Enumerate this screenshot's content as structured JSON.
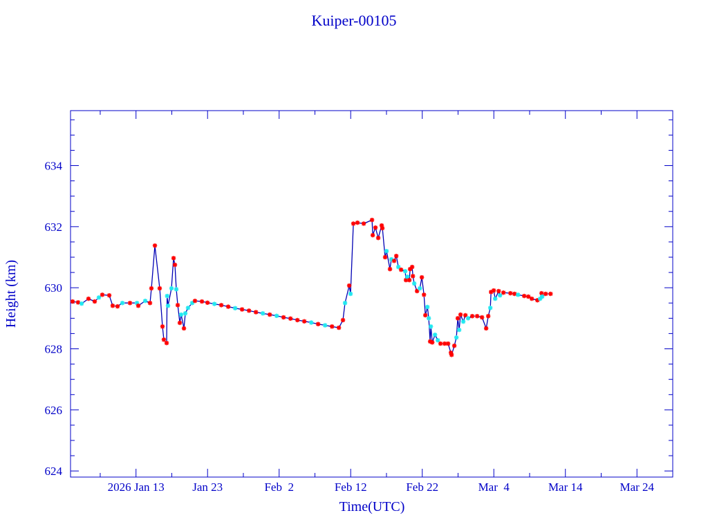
{
  "chart_data": {
    "type": "scatter",
    "title": "Kuiper-00105",
    "xlabel": "Time(UTC)",
    "ylabel": "Height (km)",
    "x_units": "day of year 2026 (Jan 1 = 1)",
    "xlim": [
      3.85,
      88.0
    ],
    "ylim": [
      623.8,
      635.8
    ],
    "x_major_step_days": 10,
    "x_minor_step_days": 5,
    "y_major_step": 2,
    "y_minor_step": 0.5,
    "grid": false,
    "x_ticks": [
      {
        "value": 13,
        "label": "2026 Jan 13"
      },
      {
        "value": 23,
        "label": "Jan 23"
      },
      {
        "value": 33,
        "label": "Feb  2"
      },
      {
        "value": 43,
        "label": "Feb 12"
      },
      {
        "value": 53,
        "label": "Feb 22"
      },
      {
        "value": 63,
        "label": "Mar  4"
      },
      {
        "value": 73,
        "label": "Mar 14"
      },
      {
        "value": 83,
        "label": "Mar 24"
      }
    ],
    "y_ticks": [
      {
        "value": 624,
        "label": "624"
      },
      {
        "value": 626,
        "label": "626"
      },
      {
        "value": 628,
        "label": "628"
      },
      {
        "value": 630,
        "label": "630"
      },
      {
        "value": 632,
        "label": "632"
      },
      {
        "value": 634,
        "label": "634"
      }
    ],
    "colors": {
      "axis": "#0000c8",
      "line": "#0000b4",
      "red_marker": "#ff0000",
      "cyan_marker": "#20e8f0"
    },
    "series_note": "points: [day, height_km, marker] where marker r=red, c=cyan; all points connected by a line",
    "points": [
      [
        4.14,
        629.55,
        "r"
      ],
      [
        4.91,
        629.52,
        "r"
      ],
      [
        5.4,
        629.48,
        "c"
      ],
      [
        6.36,
        629.64,
        "r"
      ],
      [
        7.23,
        629.55,
        "r"
      ],
      [
        7.81,
        629.68,
        "c"
      ],
      [
        8.29,
        629.77,
        "r"
      ],
      [
        9.26,
        629.75,
        "r"
      ],
      [
        9.74,
        629.41,
        "r"
      ],
      [
        10.42,
        629.39,
        "r"
      ],
      [
        11.1,
        629.5,
        "c"
      ],
      [
        12.16,
        629.5,
        "r"
      ],
      [
        13.13,
        629.5,
        "c"
      ],
      [
        13.32,
        629.41,
        "r"
      ],
      [
        14.29,
        629.57,
        "c"
      ],
      [
        14.96,
        629.5,
        "r"
      ],
      [
        15.15,
        629.98,
        "r"
      ],
      [
        15.64,
        631.38,
        "r"
      ],
      [
        16.31,
        629.98,
        "r"
      ],
      [
        16.7,
        628.73,
        "r"
      ],
      [
        16.89,
        628.3,
        "r"
      ],
      [
        17.28,
        628.19,
        "r"
      ],
      [
        17.35,
        629.73,
        "c"
      ],
      [
        17.47,
        629.41,
        "c"
      ],
      [
        17.96,
        629.98,
        "c"
      ],
      [
        18.25,
        630.97,
        "r"
      ],
      [
        18.44,
        630.75,
        "r"
      ],
      [
        18.63,
        629.95,
        "c"
      ],
      [
        18.83,
        629.43,
        "r"
      ],
      [
        19.12,
        628.85,
        "r"
      ],
      [
        19.31,
        629.12,
        "c"
      ],
      [
        19.7,
        628.67,
        "r"
      ],
      [
        19.89,
        629.16,
        "c"
      ],
      [
        20.27,
        629.34,
        "c"
      ],
      [
        20.85,
        629.5,
        "c"
      ],
      [
        21.24,
        629.57,
        "r"
      ],
      [
        22.21,
        629.55,
        "r"
      ],
      [
        22.99,
        629.51,
        "r"
      ],
      [
        23.96,
        629.47,
        "c"
      ],
      [
        24.92,
        629.43,
        "r"
      ],
      [
        25.89,
        629.38,
        "r"
      ],
      [
        26.86,
        629.33,
        "c"
      ],
      [
        27.82,
        629.29,
        "r"
      ],
      [
        28.79,
        629.25,
        "r"
      ],
      [
        29.76,
        629.2,
        "r"
      ],
      [
        30.72,
        629.16,
        "c"
      ],
      [
        31.69,
        629.12,
        "r"
      ],
      [
        32.66,
        629.08,
        "c"
      ],
      [
        33.62,
        629.03,
        "r"
      ],
      [
        34.59,
        628.99,
        "r"
      ],
      [
        35.56,
        628.94,
        "r"
      ],
      [
        36.52,
        628.9,
        "r"
      ],
      [
        37.49,
        628.86,
        "c"
      ],
      [
        38.45,
        628.81,
        "r"
      ],
      [
        39.42,
        628.77,
        "c"
      ],
      [
        40.39,
        628.73,
        "r"
      ],
      [
        41.35,
        628.69,
        "r"
      ],
      [
        41.92,
        628.94,
        "r"
      ],
      [
        42.21,
        629.5,
        "c"
      ],
      [
        42.79,
        630.07,
        "r"
      ],
      [
        42.98,
        629.8,
        "c"
      ],
      [
        43.37,
        632.1,
        "r"
      ],
      [
        43.95,
        632.13,
        "r"
      ],
      [
        44.82,
        632.1,
        "r"
      ],
      [
        45.98,
        632.22,
        "r"
      ],
      [
        46.08,
        631.72,
        "r"
      ],
      [
        46.46,
        631.97,
        "r"
      ],
      [
        46.85,
        631.63,
        "r"
      ],
      [
        47.33,
        632.04,
        "r"
      ],
      [
        47.43,
        631.95,
        "r"
      ],
      [
        47.81,
        631.0,
        "r"
      ],
      [
        48.01,
        631.2,
        "c"
      ],
      [
        48.49,
        630.61,
        "r"
      ],
      [
        48.68,
        630.93,
        "c"
      ],
      [
        49.07,
        630.88,
        "r"
      ],
      [
        49.37,
        631.04,
        "r"
      ],
      [
        49.66,
        630.68,
        "c"
      ],
      [
        50.04,
        630.59,
        "r"
      ],
      [
        50.62,
        630.54,
        "c"
      ],
      [
        50.72,
        630.25,
        "r"
      ],
      [
        50.92,
        630.36,
        "c"
      ],
      [
        51.2,
        630.25,
        "r"
      ],
      [
        51.3,
        630.61,
        "r"
      ],
      [
        51.59,
        630.68,
        "r"
      ],
      [
        51.69,
        630.38,
        "r"
      ],
      [
        51.88,
        630.14,
        "c"
      ],
      [
        52.27,
        629.89,
        "r"
      ],
      [
        52.66,
        629.98,
        "c"
      ],
      [
        52.94,
        630.34,
        "r"
      ],
      [
        53.24,
        629.77,
        "r"
      ],
      [
        53.43,
        629.1,
        "r"
      ],
      [
        53.72,
        629.37,
        "c"
      ],
      [
        53.91,
        629.0,
        "c"
      ],
      [
        54.1,
        628.24,
        "r"
      ],
      [
        54.2,
        628.73,
        "c"
      ],
      [
        54.4,
        628.21,
        "r"
      ],
      [
        54.78,
        628.46,
        "c"
      ],
      [
        55.17,
        628.28,
        "c"
      ],
      [
        55.55,
        628.17,
        "r"
      ],
      [
        56.13,
        628.17,
        "r"
      ],
      [
        56.61,
        628.17,
        "r"
      ],
      [
        57.0,
        627.87,
        "r"
      ],
      [
        57.1,
        627.8,
        "r"
      ],
      [
        57.48,
        628.1,
        "r"
      ],
      [
        57.77,
        628.37,
        "c"
      ],
      [
        57.96,
        629.0,
        "r"
      ],
      [
        58.16,
        628.62,
        "c"
      ],
      [
        58.35,
        629.12,
        "r"
      ],
      [
        58.73,
        628.89,
        "c"
      ],
      [
        59.03,
        629.1,
        "r"
      ],
      [
        59.41,
        629.0,
        "c"
      ],
      [
        59.99,
        629.07,
        "r"
      ],
      [
        60.67,
        629.07,
        "r"
      ],
      [
        61.35,
        629.03,
        "r"
      ],
      [
        61.93,
        628.67,
        "r"
      ],
      [
        62.22,
        629.07,
        "r"
      ],
      [
        62.51,
        629.34,
        "c"
      ],
      [
        62.61,
        629.86,
        "r"
      ],
      [
        62.99,
        629.91,
        "r"
      ],
      [
        63.19,
        629.64,
        "c"
      ],
      [
        63.68,
        629.89,
        "r"
      ],
      [
        63.87,
        629.75,
        "c"
      ],
      [
        64.35,
        629.84,
        "r"
      ],
      [
        65.32,
        629.82,
        "r"
      ],
      [
        65.9,
        629.8,
        "r"
      ],
      [
        66.38,
        629.77,
        "c"
      ],
      [
        67.25,
        629.73,
        "r"
      ],
      [
        67.83,
        629.71,
        "r"
      ],
      [
        68.31,
        629.64,
        "r"
      ],
      [
        69.09,
        629.59,
        "r"
      ],
      [
        69.47,
        629.64,
        "c"
      ],
      [
        69.67,
        629.82,
        "r"
      ],
      [
        69.76,
        629.71,
        "c"
      ],
      [
        70.25,
        629.8,
        "r"
      ],
      [
        70.93,
        629.8,
        "r"
      ]
    ]
  }
}
